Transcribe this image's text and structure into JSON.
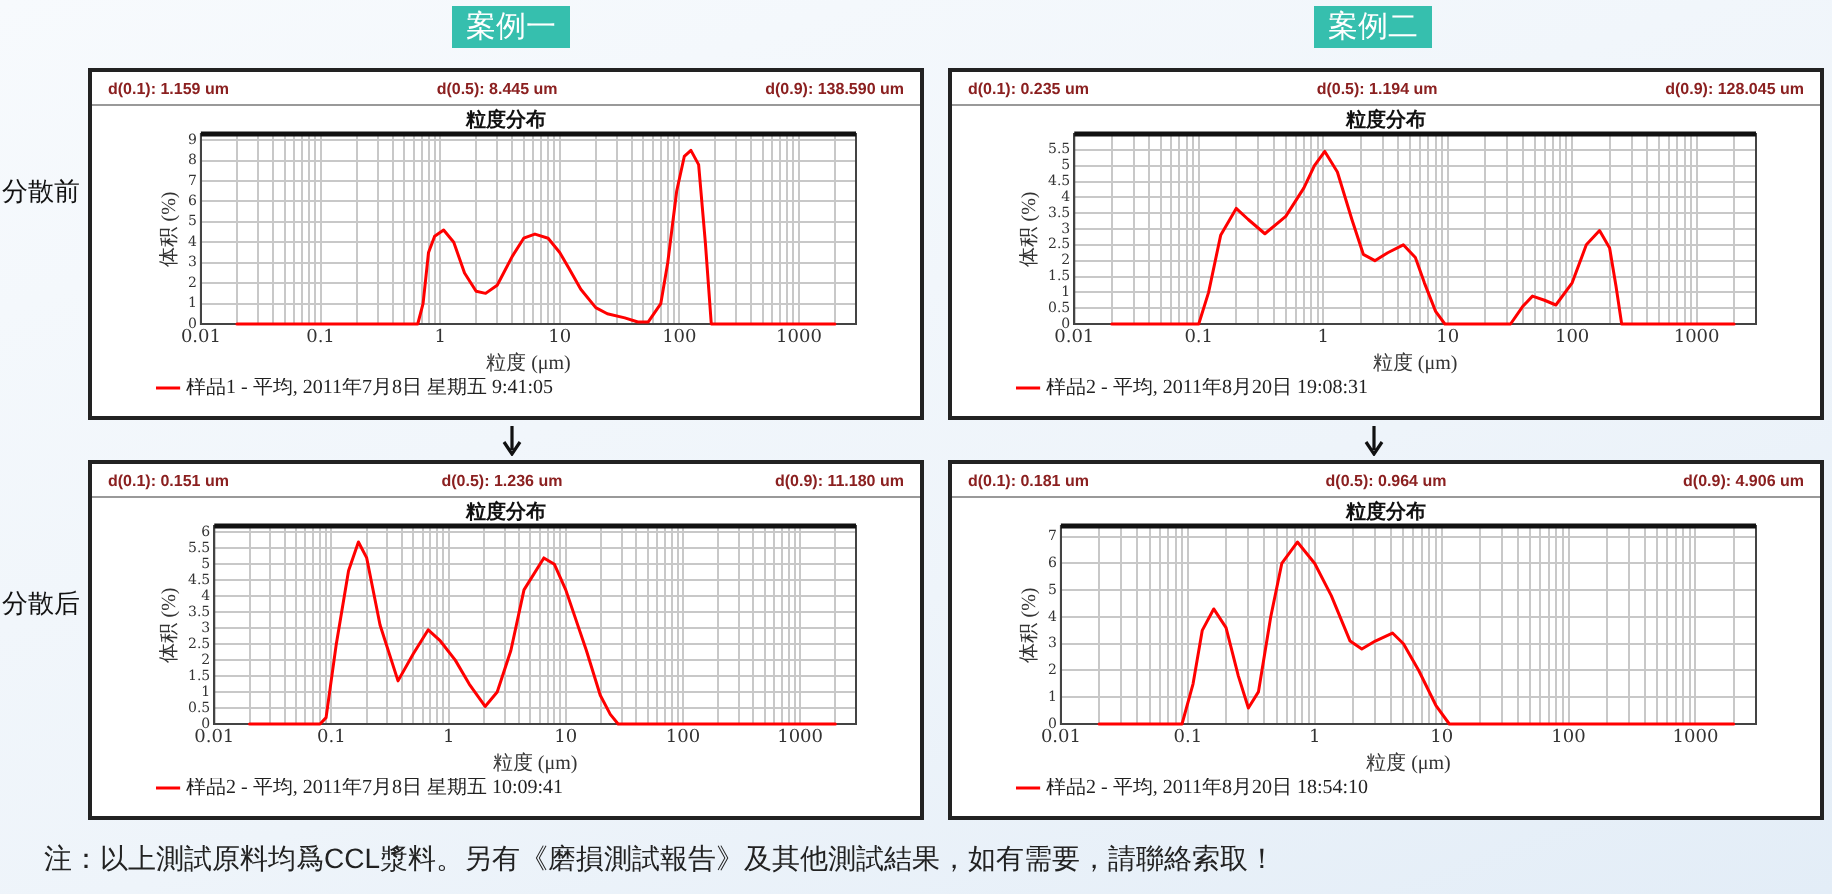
{
  "chart_data": [
    {
      "type": "line",
      "title": "粒度分布",
      "xlabel": "粒度 (μm)",
      "ylabel": "体积 (%)",
      "log": "x",
      "grid": true,
      "legend": "bottom",
      "marker": "none",
      "line_style": "solid",
      "annotations": [
        "d(0.1): 1.159 um",
        "d(0.5): 8.445 um",
        "d(0.9): 138.590 um"
      ],
      "x": [
        0.02,
        0.65,
        0.72,
        0.8,
        0.9,
        1.07,
        1.3,
        1.6,
        2.0,
        2.4,
        3,
        4,
        5,
        6.2,
        8,
        10,
        12,
        15,
        20,
        25,
        35,
        45,
        55,
        70,
        80,
        95,
        110,
        125,
        145,
        165,
        185,
        2000
      ],
      "series": [
        {
          "name": "样品1 - 平均, 2011年7月8日 星期五 9:41:05",
          "color": "#ff0000",
          "values": [
            0,
            0,
            1,
            3.5,
            4.3,
            4.6,
            4.0,
            2.5,
            1.6,
            1.5,
            1.9,
            3.3,
            4.2,
            4.4,
            4.2,
            3.5,
            2.7,
            1.7,
            0.8,
            0.5,
            0.3,
            0.1,
            0.1,
            1.0,
            3,
            6.5,
            8.2,
            8.5,
            7.8,
            4,
            0,
            0
          ]
        }
      ],
      "xlim": [
        0.01,
        3000
      ],
      "ylim": [
        0,
        9.3
      ],
      "xticks": [
        0.01,
        {
          "value": 0.02,
          "label": null
        },
        {
          "value": 0.03,
          "label": null
        },
        {
          "value": 0.04,
          "label": null
        },
        {
          "value": 0.05,
          "label": null
        },
        {
          "value": 0.06,
          "label": null
        },
        {
          "value": 0.07,
          "label": null
        },
        {
          "value": 0.08,
          "label": null
        },
        {
          "value": 0.09,
          "label": null
        },
        0.1,
        {
          "value": 0.2,
          "label": null
        },
        {
          "value": 0.3,
          "label": null
        },
        {
          "value": 0.4,
          "label": null
        },
        {
          "value": 0.5,
          "label": null
        },
        {
          "value": 0.6,
          "label": null
        },
        {
          "value": 0.7,
          "label": null
        },
        {
          "value": 0.8,
          "label": null
        },
        {
          "value": 0.9,
          "label": null
        },
        1,
        {
          "value": 2,
          "label": null
        },
        {
          "value": 3,
          "label": null
        },
        {
          "value": 4,
          "label": null
        },
        {
          "value": 5,
          "label": null
        },
        {
          "value": 6,
          "label": null
        },
        {
          "value": 7,
          "label": null
        },
        {
          "value": 8,
          "label": null
        },
        {
          "value": 9,
          "label": null
        },
        10,
        {
          "value": 20,
          "label": null
        },
        {
          "value": 30,
          "label": null
        },
        {
          "value": 40,
          "label": null
        },
        {
          "value": 50,
          "label": null
        },
        {
          "value": 60,
          "label": null
        },
        {
          "value": 70,
          "label": null
        },
        {
          "value": 80,
          "label": null
        },
        {
          "value": 90,
          "label": null
        },
        100,
        {
          "value": 200,
          "label": null
        },
        {
          "value": 300,
          "label": null
        },
        {
          "value": 400,
          "label": null
        },
        {
          "value": 500,
          "label": null
        },
        {
          "value": 600,
          "label": null
        },
        {
          "value": 700,
          "label": null
        },
        {
          "value": 800,
          "label": null
        },
        {
          "value": 900,
          "label": null
        },
        1000,
        {
          "value": 2000,
          "label": null
        },
        {
          "value": 3000,
          "label": null
        }
      ],
      "yticks": [
        0,
        1,
        2,
        3,
        4,
        5,
        6,
        7,
        8,
        9
      ]
    },
    {
      "type": "line",
      "title": "粒度分布",
      "xlabel": "粒度 (μm)",
      "ylabel": "体积 (%)",
      "log": "x",
      "grid": true,
      "legend": "bottom",
      "marker": "none",
      "line_style": "solid",
      "annotations": [
        "d(0.1): 0.235 um",
        "d(0.5): 1.194 um",
        "d(0.9): 128.045 um"
      ],
      "x": [
        0.02,
        0.1,
        0.12,
        0.15,
        0.2,
        0.25,
        0.34,
        0.5,
        0.7,
        0.85,
        1.03,
        1.3,
        1.7,
        2.1,
        2.6,
        3.3,
        4.4,
        5.5,
        6.5,
        8,
        9.5,
        32,
        40,
        48,
        60,
        74,
        100,
        130,
        166,
        200,
        225,
        250,
        2000
      ],
      "series": [
        {
          "name": "样品2 - 平均, 2011年8月20日 19:08:31",
          "color": "#ff0000",
          "values": [
            0,
            0,
            1,
            2.8,
            3.65,
            3.3,
            2.85,
            3.4,
            4.3,
            5.0,
            5.45,
            4.8,
            3.3,
            2.2,
            2.0,
            2.25,
            2.5,
            2.1,
            1.3,
            0.4,
            0,
            0,
            0.55,
            0.88,
            0.75,
            0.6,
            1.3,
            2.5,
            2.95,
            2.4,
            1.2,
            0,
            0
          ]
        }
      ],
      "xlim": [
        0.01,
        3000
      ],
      "ylim": [
        0,
        6
      ],
      "xticks": [
        0.01,
        {
          "value": 0.02,
          "label": null
        },
        {
          "value": 0.03,
          "label": null
        },
        {
          "value": 0.04,
          "label": null
        },
        {
          "value": 0.05,
          "label": null
        },
        {
          "value": 0.06,
          "label": null
        },
        {
          "value": 0.07,
          "label": null
        },
        {
          "value": 0.08,
          "label": null
        },
        {
          "value": 0.09,
          "label": null
        },
        0.1,
        {
          "value": 0.2,
          "label": null
        },
        {
          "value": 0.3,
          "label": null
        },
        {
          "value": 0.4,
          "label": null
        },
        {
          "value": 0.5,
          "label": null
        },
        {
          "value": 0.6,
          "label": null
        },
        {
          "value": 0.7,
          "label": null
        },
        {
          "value": 0.8,
          "label": null
        },
        {
          "value": 0.9,
          "label": null
        },
        1,
        {
          "value": 2,
          "label": null
        },
        {
          "value": 3,
          "label": null
        },
        {
          "value": 4,
          "label": null
        },
        {
          "value": 5,
          "label": null
        },
        {
          "value": 6,
          "label": null
        },
        {
          "value": 7,
          "label": null
        },
        {
          "value": 8,
          "label": null
        },
        {
          "value": 9,
          "label": null
        },
        10,
        {
          "value": 20,
          "label": null
        },
        {
          "value": 30,
          "label": null
        },
        {
          "value": 40,
          "label": null
        },
        {
          "value": 50,
          "label": null
        },
        {
          "value": 60,
          "label": null
        },
        {
          "value": 70,
          "label": null
        },
        {
          "value": 80,
          "label": null
        },
        {
          "value": 90,
          "label": null
        },
        100,
        {
          "value": 200,
          "label": null
        },
        {
          "value": 300,
          "label": null
        },
        {
          "value": 400,
          "label": null
        },
        {
          "value": 500,
          "label": null
        },
        {
          "value": 600,
          "label": null
        },
        {
          "value": 700,
          "label": null
        },
        {
          "value": 800,
          "label": null
        },
        {
          "value": 900,
          "label": null
        },
        1000,
        {
          "value": 2000,
          "label": null
        },
        {
          "value": 3000,
          "label": null
        }
      ],
      "yticks": [
        0,
        0.5,
        1,
        1.5,
        2,
        2.5,
        3,
        3.5,
        4,
        4.5,
        5,
        5.5
      ]
    },
    {
      "type": "line",
      "title": "粒度分布",
      "xlabel": "粒度 (μm)",
      "ylabel": "体积 (%)",
      "log": "x",
      "grid": true,
      "legend": "bottom",
      "marker": "none",
      "line_style": "solid",
      "annotations": [
        "d(0.1): 0.151 um",
        "d(0.5): 1.236 um",
        "d(0.9): 11.180 um"
      ],
      "x": [
        0.02,
        0.08,
        0.09,
        0.11,
        0.14,
        0.17,
        0.2,
        0.26,
        0.37,
        0.5,
        0.67,
        0.85,
        1.14,
        1.5,
        2.05,
        2.6,
        3.4,
        4.4,
        6.5,
        8,
        10,
        15,
        19.7,
        24,
        28,
        2000
      ],
      "series": [
        {
          "name": "样品2 - 平均, 2011年7月8日 星期五 10:09:41",
          "color": "#ff0000",
          "values": [
            0,
            0,
            0.2,
            2.5,
            4.8,
            5.7,
            5.2,
            3.1,
            1.35,
            2.2,
            2.95,
            2.6,
            2.0,
            1.25,
            0.55,
            1.0,
            2.3,
            4.2,
            5.2,
            5.0,
            4.2,
            2.3,
            0.9,
            0.3,
            0,
            0
          ]
        }
      ],
      "xlim": [
        0.01,
        3000
      ],
      "ylim": [
        0,
        6.2
      ],
      "xticks": [
        0.01,
        {
          "value": 0.02,
          "label": null
        },
        {
          "value": 0.03,
          "label": null
        },
        {
          "value": 0.04,
          "label": null
        },
        {
          "value": 0.05,
          "label": null
        },
        {
          "value": 0.06,
          "label": null
        },
        {
          "value": 0.07,
          "label": null
        },
        {
          "value": 0.08,
          "label": null
        },
        {
          "value": 0.09,
          "label": null
        },
        0.1,
        {
          "value": 0.2,
          "label": null
        },
        {
          "value": 0.3,
          "label": null
        },
        {
          "value": 0.4,
          "label": null
        },
        {
          "value": 0.5,
          "label": null
        },
        {
          "value": 0.6,
          "label": null
        },
        {
          "value": 0.7,
          "label": null
        },
        {
          "value": 0.8,
          "label": null
        },
        {
          "value": 0.9,
          "label": null
        },
        1,
        {
          "value": 2,
          "label": null
        },
        {
          "value": 3,
          "label": null
        },
        {
          "value": 4,
          "label": null
        },
        {
          "value": 5,
          "label": null
        },
        {
          "value": 6,
          "label": null
        },
        {
          "value": 7,
          "label": null
        },
        {
          "value": 8,
          "label": null
        },
        {
          "value": 9,
          "label": null
        },
        10,
        {
          "value": 20,
          "label": null
        },
        {
          "value": 30,
          "label": null
        },
        {
          "value": 40,
          "label": null
        },
        {
          "value": 50,
          "label": null
        },
        {
          "value": 60,
          "label": null
        },
        {
          "value": 70,
          "label": null
        },
        {
          "value": 80,
          "label": null
        },
        {
          "value": 90,
          "label": null
        },
        100,
        {
          "value": 200,
          "label": null
        },
        {
          "value": 300,
          "label": null
        },
        {
          "value": 400,
          "label": null
        },
        {
          "value": 500,
          "label": null
        },
        {
          "value": 600,
          "label": null
        },
        {
          "value": 700,
          "label": null
        },
        {
          "value": 800,
          "label": null
        },
        {
          "value": 900,
          "label": null
        },
        1000,
        {
          "value": 2000,
          "label": null
        },
        {
          "value": 3000,
          "label": null
        }
      ],
      "yticks": [
        0,
        0.5,
        1,
        1.5,
        2,
        2.5,
        3,
        3.5,
        4,
        4.5,
        5,
        5.5,
        6
      ]
    },
    {
      "type": "line",
      "title": "粒度分布",
      "xlabel": "粒度 (μm)",
      "ylabel": "体积 (%)",
      "log": "x",
      "grid": true,
      "legend": "bottom",
      "marker": "none",
      "line_style": "solid",
      "annotations": [
        "d(0.1): 0.181 um",
        "d(0.5): 0.964 um",
        "d(0.9): 4.906 um"
      ],
      "x": [
        0.02,
        0.09,
        0.11,
        0.13,
        0.16,
        0.2,
        0.25,
        0.3,
        0.36,
        0.45,
        0.55,
        0.73,
        1.0,
        1.35,
        1.9,
        2.35,
        3.0,
        4.1,
        5,
        6.6,
        9,
        11.5,
        2000
      ],
      "series": [
        {
          "name": "样品2 - 平均, 2011年8月20日 18:54:10",
          "color": "#ff0000",
          "values": [
            0,
            0,
            1.5,
            3.5,
            4.3,
            3.6,
            1.8,
            0.6,
            1.2,
            4.0,
            6.0,
            6.8,
            6.0,
            4.8,
            3.1,
            2.8,
            3.1,
            3.4,
            3.0,
            2.0,
            0.7,
            0,
            0
          ]
        }
      ],
      "xlim": [
        0.01,
        3000
      ],
      "ylim": [
        0,
        7.4
      ],
      "xticks": [
        0.01,
        {
          "value": 0.02,
          "label": null
        },
        {
          "value": 0.03,
          "label": null
        },
        {
          "value": 0.04,
          "label": null
        },
        {
          "value": 0.05,
          "label": null
        },
        {
          "value": 0.06,
          "label": null
        },
        {
          "value": 0.07,
          "label": null
        },
        {
          "value": 0.08,
          "label": null
        },
        {
          "value": 0.09,
          "label": null
        },
        0.1,
        {
          "value": 0.2,
          "label": null
        },
        {
          "value": 0.3,
          "label": null
        },
        {
          "value": 0.4,
          "label": null
        },
        {
          "value": 0.5,
          "label": null
        },
        {
          "value": 0.6,
          "label": null
        },
        {
          "value": 0.7,
          "label": null
        },
        {
          "value": 0.8,
          "label": null
        },
        {
          "value": 0.9,
          "label": null
        },
        1,
        {
          "value": 2,
          "label": null
        },
        {
          "value": 3,
          "label": null
        },
        {
          "value": 4,
          "label": null
        },
        {
          "value": 5,
          "label": null
        },
        {
          "value": 6,
          "label": null
        },
        {
          "value": 7,
          "label": null
        },
        {
          "value": 8,
          "label": null
        },
        {
          "value": 9,
          "label": null
        },
        10,
        {
          "value": 20,
          "label": null
        },
        {
          "value": 30,
          "label": null
        },
        {
          "value": 40,
          "label": null
        },
        {
          "value": 50,
          "label": null
        },
        {
          "value": 60,
          "label": null
        },
        {
          "value": 70,
          "label": null
        },
        {
          "value": 80,
          "label": null
        },
        {
          "value": 90,
          "label": null
        },
        100,
        {
          "value": 200,
          "label": null
        },
        {
          "value": 300,
          "label": null
        },
        {
          "value": 400,
          "label": null
        },
        {
          "value": 500,
          "label": null
        },
        {
          "value": 600,
          "label": null
        },
        {
          "value": 700,
          "label": null
        },
        {
          "value": 800,
          "label": null
        },
        {
          "value": 900,
          "label": null
        },
        1000,
        {
          "value": 2000,
          "label": null
        },
        {
          "value": 3000,
          "label": null
        }
      ],
      "yticks": [
        0,
        1,
        2,
        3,
        4,
        5,
        6,
        7
      ]
    },
    {
      "type": "other",
      "annotations": [
        "案例一",
        "案例二",
        "分散前",
        "分散后",
        "注：以上測試原料均爲CCL漿料。另有《磨損測試報告》及其他測試結果，如有需要，請聯絡索取！"
      ]
    }
  ]
}
